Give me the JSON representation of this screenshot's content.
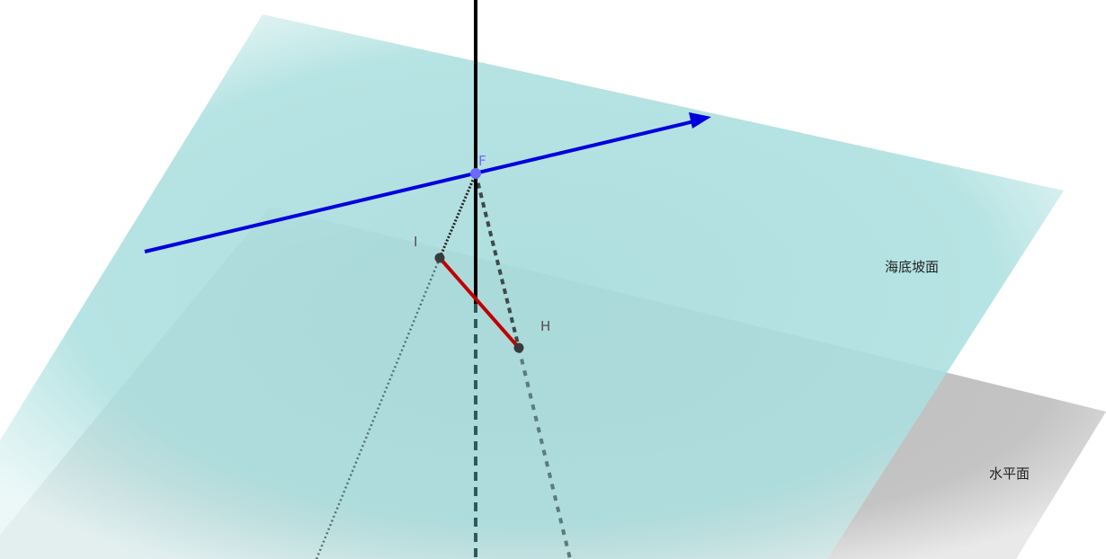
{
  "planes": {
    "seafloor_slope": {
      "label": "海底坡面",
      "color": "#9ed8d8"
    },
    "horizontal": {
      "label": "水平面",
      "color": "#a8a8a8"
    }
  },
  "points": {
    "F": {
      "label": "F",
      "color": "#6a6aff"
    },
    "I": {
      "label": "I",
      "color": "#444444"
    },
    "H": {
      "label": "H",
      "color": "#444444"
    }
  },
  "colors": {
    "direction_line": "#0000dd",
    "segment_IH": "#c00000",
    "vertical_line": "#000000"
  }
}
